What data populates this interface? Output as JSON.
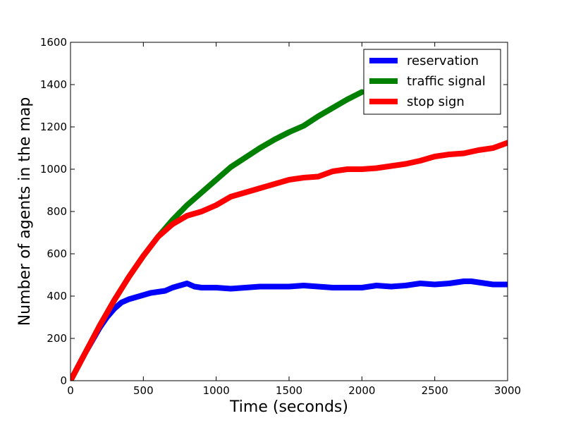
{
  "chart_data": {
    "type": "line",
    "title": "",
    "xlabel": "Time (seconds)",
    "ylabel": "Number of agents in the map",
    "xlim": [
      0,
      3000
    ],
    "ylim": [
      0,
      1600
    ],
    "xticks": [
      0,
      500,
      1000,
      1500,
      2000,
      2500,
      3000
    ],
    "yticks": [
      0,
      200,
      400,
      600,
      800,
      1000,
      1200,
      1400,
      1600
    ],
    "grid": false,
    "legend_position": "top-right",
    "series": [
      {
        "name": "reservation",
        "color": "#0000ff",
        "x": [
          0,
          50,
          100,
          150,
          200,
          250,
          300,
          350,
          400,
          450,
          500,
          550,
          600,
          650,
          700,
          750,
          800,
          850,
          900,
          950,
          1000,
          1100,
          1200,
          1300,
          1400,
          1500,
          1600,
          1700,
          1800,
          1900,
          2000,
          2100,
          2200,
          2300,
          2400,
          2500,
          2600,
          2700,
          2750,
          2800,
          2900,
          3000
        ],
        "y": [
          0,
          65,
          130,
          190,
          250,
          300,
          340,
          370,
          385,
          395,
          405,
          415,
          420,
          425,
          440,
          450,
          460,
          445,
          440,
          440,
          440,
          435,
          440,
          445,
          445,
          445,
          450,
          445,
          440,
          440,
          440,
          450,
          445,
          450,
          460,
          455,
          460,
          470,
          470,
          465,
          455,
          455
        ]
      },
      {
        "name": "traffic signal",
        "color": "#008000",
        "x": [
          0,
          100,
          200,
          300,
          400,
          500,
          600,
          700,
          800,
          900,
          1000,
          1100,
          1200,
          1300,
          1400,
          1500,
          1600,
          1700,
          1800,
          1900,
          2000
        ],
        "y": [
          0,
          130,
          260,
          380,
          490,
          590,
          680,
          760,
          830,
          890,
          950,
          1010,
          1055,
          1100,
          1140,
          1175,
          1205,
          1250,
          1290,
          1330,
          1365
        ]
      },
      {
        "name": "stop sign",
        "color": "#ff0000",
        "x": [
          0,
          100,
          200,
          300,
          400,
          500,
          600,
          700,
          800,
          900,
          1000,
          1100,
          1200,
          1300,
          1400,
          1500,
          1600,
          1700,
          1800,
          1900,
          2000,
          2100,
          2200,
          2300,
          2400,
          2500,
          2600,
          2700,
          2800,
          2900,
          3000
        ],
        "y": [
          0,
          130,
          260,
          380,
          490,
          590,
          680,
          740,
          780,
          800,
          830,
          870,
          890,
          910,
          930,
          950,
          960,
          965,
          990,
          1000,
          1000,
          1005,
          1015,
          1025,
          1040,
          1060,
          1070,
          1075,
          1090,
          1100,
          1125
        ]
      }
    ]
  }
}
